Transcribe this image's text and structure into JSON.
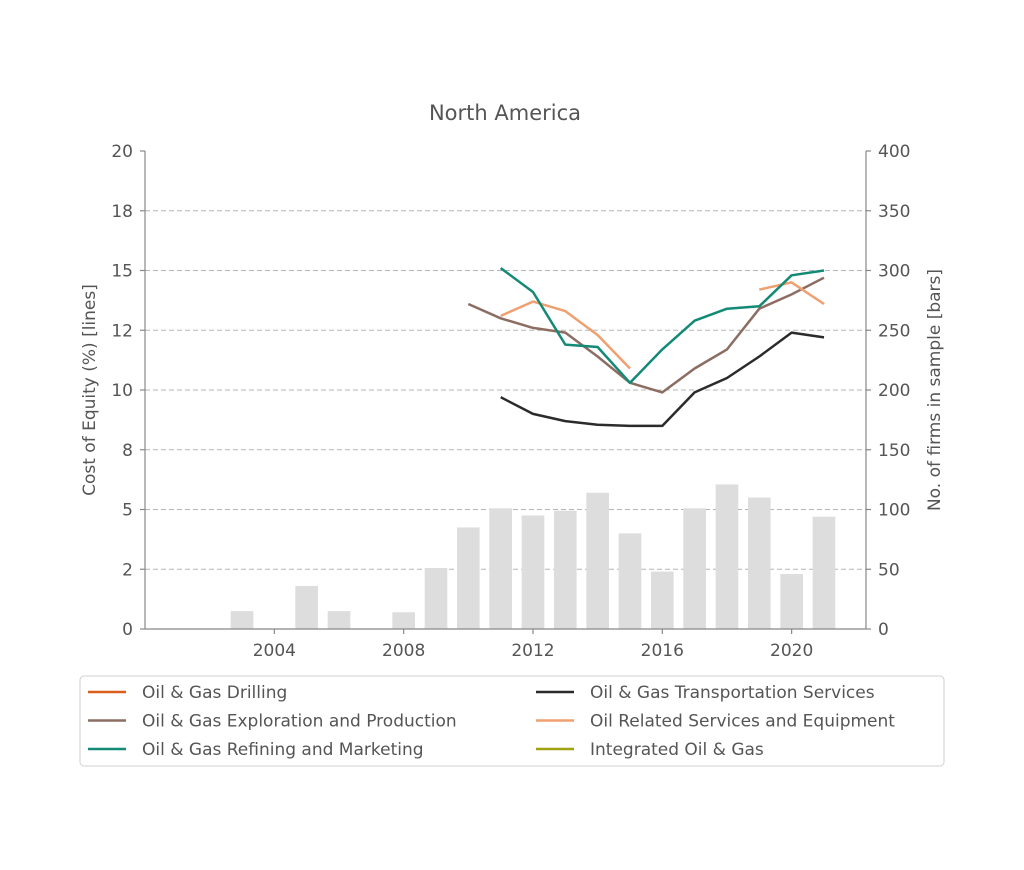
{
  "chart_data": {
    "type": "line",
    "title": "North America",
    "ylabel_left": "Cost of Equity (%)  [lines]",
    "ylabel_right": "No. of firms in sample  [bars]",
    "xlim": [
      2000,
      2022.3
    ],
    "ylim_left": [
      0,
      20
    ],
    "ylim_right": [
      0,
      400
    ],
    "x_ticks": [
      2004,
      2008,
      2012,
      2016,
      2020
    ],
    "y_ticks_left": [
      {
        "value": 0,
        "label": "0"
      },
      {
        "value": 2.5,
        "label": "2"
      },
      {
        "value": 5,
        "label": "5"
      },
      {
        "value": 7.5,
        "label": "8"
      },
      {
        "value": 10,
        "label": "10"
      },
      {
        "value": 12.5,
        "label": "12"
      },
      {
        "value": 15,
        "label": "15"
      },
      {
        "value": 17.5,
        "label": "18"
      },
      {
        "value": 20,
        "label": "20"
      }
    ],
    "y_ticks_right": [
      0,
      50,
      100,
      150,
      200,
      250,
      300,
      350,
      400
    ],
    "grid": "horizontal dashed",
    "legend_placement": "bottom",
    "bars": {
      "color": "#dddddd",
      "years": [
        2003,
        2005,
        2006,
        2008,
        2009,
        2010,
        2011,
        2012,
        2013,
        2014,
        2015,
        2016,
        2017,
        2018,
        2019,
        2020,
        2021
      ],
      "values": [
        15,
        36,
        15,
        14,
        51,
        85,
        101,
        95,
        99,
        114,
        80,
        48,
        101,
        121,
        110,
        46,
        94
      ]
    },
    "series": [
      {
        "name": "Oil & Gas Drilling",
        "color": "#d95f1a",
        "x": [],
        "y": []
      },
      {
        "name": "Oil & Gas Transportation Services",
        "color": "#2b2b2b",
        "x": [
          2011,
          2012,
          2013,
          2014,
          2015,
          2016,
          2017,
          2018,
          2019,
          2020,
          2021
        ],
        "y": [
          9.7,
          9.0,
          8.7,
          8.55,
          8.5,
          8.5,
          9.9,
          10.5,
          11.4,
          12.4,
          12.2
        ]
      },
      {
        "name": "Oil & Gas Exploration and Production",
        "color": "#8c6d62",
        "x": [
          2010,
          2011,
          2012,
          2013,
          2014,
          2015,
          2016,
          2017,
          2018,
          2019,
          2020,
          2021
        ],
        "y": [
          13.6,
          13.0,
          12.6,
          12.4,
          11.4,
          10.3,
          9.9,
          10.9,
          11.7,
          13.4,
          14.0,
          14.7
        ]
      },
      {
        "name": "Oil Related Services and Equipment",
        "color": "#f0a070",
        "x": [
          2011,
          2012,
          2013,
          2014,
          2015
        ],
        "y": [
          13.1,
          13.7,
          13.3,
          12.3,
          10.9
        ],
        "x2": [
          2019,
          2020,
          2021
        ],
        "y2": [
          14.2,
          14.5,
          13.6
        ]
      },
      {
        "name": "Oil & Gas Refining and Marketing",
        "color": "#138a76",
        "x": [
          2011,
          2012,
          2013,
          2014,
          2015,
          2016,
          2017,
          2018,
          2019,
          2020,
          2021
        ],
        "y": [
          15.1,
          14.1,
          11.9,
          11.8,
          10.3,
          11.7,
          12.9,
          13.4,
          13.5,
          14.8,
          15.0
        ]
      },
      {
        "name": "Integrated Oil & Gas",
        "color": "#a0a010",
        "x": [],
        "y": []
      }
    ],
    "legend": [
      {
        "label": "Oil & Gas Drilling",
        "color": "#d95f1a"
      },
      {
        "label": "Oil & Gas Transportation Services",
        "color": "#2b2b2b"
      },
      {
        "label": "Oil & Gas Exploration and Production",
        "color": "#8c6d62"
      },
      {
        "label": "Oil Related Services and Equipment",
        "color": "#f0a070"
      },
      {
        "label": "Oil & Gas Refining and Marketing",
        "color": "#138a76"
      },
      {
        "label": "Integrated Oil & Gas",
        "color": "#a0a010"
      }
    ]
  }
}
